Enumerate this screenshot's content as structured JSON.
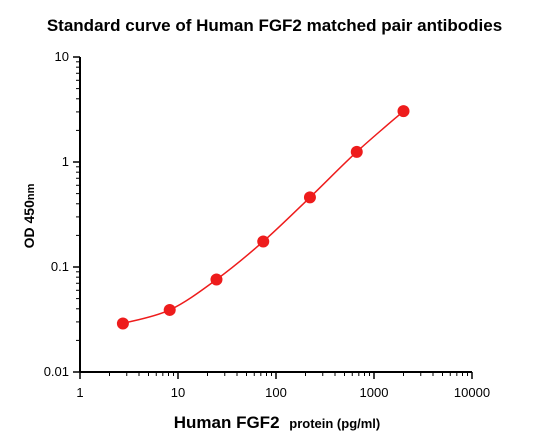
{
  "chart_data": {
    "type": "scatter",
    "title": "Standard curve of Human FGF2 matched pair antibodies",
    "xlabel": "Human FGF2",
    "xlabel_suffix": "protein (pg/ml)",
    "ylabel": "OD 450",
    "ylabel_suffix": "nm",
    "xscale": "log",
    "yscale": "log",
    "xlim": [
      1,
      10000
    ],
    "ylim": [
      0.01,
      10
    ],
    "x_ticks": [
      {
        "value": 1,
        "label": "1"
      },
      {
        "value": 10,
        "label": "10"
      },
      {
        "value": 100,
        "label": "100"
      },
      {
        "value": 1000,
        "label": "1000"
      },
      {
        "value": 10000,
        "label": "10000"
      }
    ],
    "y_ticks": [
      {
        "value": 0.01,
        "label": "0.01"
      },
      {
        "value": 0.1,
        "label": "0.1"
      },
      {
        "value": 1,
        "label": "1"
      },
      {
        "value": 10,
        "label": "10"
      }
    ],
    "grid": false,
    "series": [
      {
        "color": "#ee1c1c",
        "x": [
          2.74,
          8.23,
          24.7,
          74.1,
          222,
          667,
          2000
        ],
        "y": [
          0.029,
          0.039,
          0.076,
          0.175,
          0.46,
          1.25,
          3.05
        ],
        "fit_line": true
      }
    ]
  }
}
